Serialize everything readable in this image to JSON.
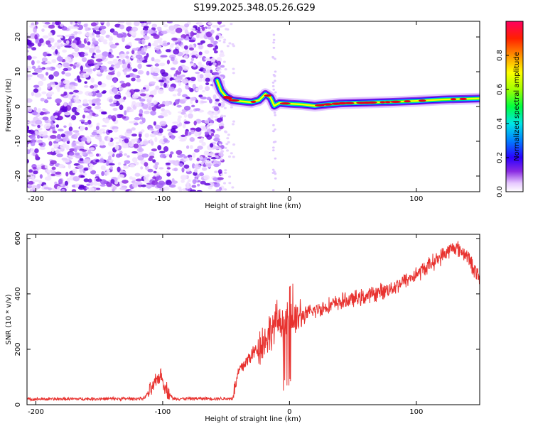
{
  "title": "S199.2025.348.05.26.G29",
  "colors": {
    "snr_line": "#e8322f",
    "axes": "#000000"
  },
  "chart_data": [
    {
      "type": "heatmap",
      "name": "spectrogram",
      "xlabel": "Height of straight line (km)",
      "ylabel": "Frequency (Hz)",
      "xlim": [
        -207,
        150
      ],
      "ylim": [
        -24.5,
        24.5
      ],
      "xticks": [
        -200,
        -100,
        0,
        100
      ],
      "yticks": [
        -20,
        -10,
        0,
        10,
        20
      ],
      "xtick_labels": [
        "-200",
        "-100",
        "0",
        "100"
      ],
      "ytick_labels": [
        "-20",
        "-10",
        "0",
        "10",
        "20"
      ],
      "noise_region_x": [
        -207,
        -55
      ],
      "ridge": [
        {
          "x": -57,
          "f": 7.5
        },
        {
          "x": -54,
          "f": 4.5
        },
        {
          "x": -50,
          "f": 2.8
        },
        {
          "x": -45,
          "f": 1.8
        },
        {
          "x": -38,
          "f": 1.5
        },
        {
          "x": -30,
          "f": 1.2
        },
        {
          "x": -24,
          "f": 1.8
        },
        {
          "x": -19,
          "f": 3.6
        },
        {
          "x": -15,
          "f": 2.6
        },
        {
          "x": -12,
          "f": 0.2
        },
        {
          "x": -8,
          "f": 1.0
        },
        {
          "x": 0,
          "f": 0.8
        },
        {
          "x": 10,
          "f": 0.6
        },
        {
          "x": 20,
          "f": 0.2
        },
        {
          "x": 30,
          "f": 0.6
        },
        {
          "x": 40,
          "f": 0.9
        },
        {
          "x": 60,
          "f": 1.1
        },
        {
          "x": 80,
          "f": 1.3
        },
        {
          "x": 100,
          "f": 1.6
        },
        {
          "x": 120,
          "f": 2.0
        },
        {
          "x": 150,
          "f": 2.3
        }
      ]
    },
    {
      "type": "line",
      "name": "snr",
      "xlabel": "Height of straight line (km)",
      "ylabel": "SNR (10 * v/v)",
      "xlim": [
        -207,
        150
      ],
      "ylim": [
        0,
        615
      ],
      "xticks": [
        -200,
        -100,
        0,
        100
      ],
      "yticks": [
        0,
        200,
        400,
        600
      ],
      "xtick_labels": [
        "-200",
        "-100",
        "0",
        "100"
      ],
      "ytick_labels": [
        "0",
        "200",
        "400",
        "600"
      ],
      "envelope": [
        {
          "x": -207,
          "y": 20
        },
        {
          "x": -115,
          "y": 22
        },
        {
          "x": -108,
          "y": 60
        },
        {
          "x": -102,
          "y": 110
        },
        {
          "x": -97,
          "y": 55
        },
        {
          "x": -92,
          "y": 22
        },
        {
          "x": -45,
          "y": 22
        },
        {
          "x": -40,
          "y": 120
        },
        {
          "x": -30,
          "y": 180
        },
        {
          "x": -20,
          "y": 230
        },
        {
          "x": -10,
          "y": 300
        },
        {
          "x": 0,
          "y": 300
        },
        {
          "x": 10,
          "y": 320
        },
        {
          "x": 20,
          "y": 340
        },
        {
          "x": 40,
          "y": 370
        },
        {
          "x": 60,
          "y": 390
        },
        {
          "x": 80,
          "y": 420
        },
        {
          "x": 100,
          "y": 470
        },
        {
          "x": 115,
          "y": 520
        },
        {
          "x": 130,
          "y": 570
        },
        {
          "x": 140,
          "y": 540
        },
        {
          "x": 150,
          "y": 450
        }
      ]
    },
    {
      "type": "heatmap",
      "name": "colorbar",
      "ylabel": "Normalized spectral amplitude",
      "ylim": [
        0,
        1
      ],
      "yticks": [
        0.0,
        0.2,
        0.4,
        0.6,
        0.8
      ],
      "ytick_labels": [
        "0.0",
        "0.2",
        "0.4",
        "0.6",
        "0.8"
      ]
    }
  ]
}
